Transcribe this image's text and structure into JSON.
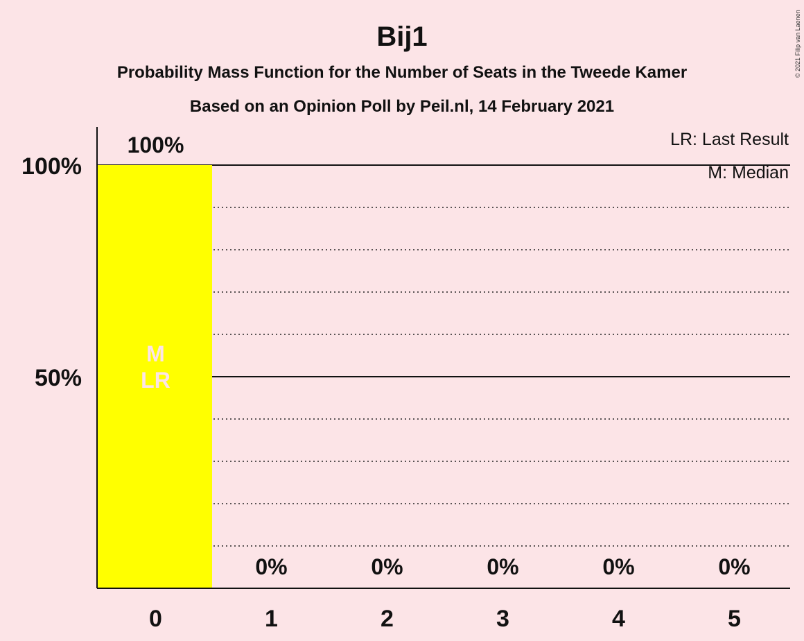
{
  "chart_data": {
    "type": "bar",
    "title": "Bij1",
    "subtitle_1": "Probability Mass Function for the Number of Seats in the Tweede Kamer",
    "subtitle_2": "Based on an Opinion Poll by Peil.nl, 14 February 2021",
    "categories": [
      "0",
      "1",
      "2",
      "3",
      "4",
      "5"
    ],
    "values": [
      100,
      0,
      0,
      0,
      0,
      0
    ],
    "value_labels": [
      "100%",
      "0%",
      "0%",
      "0%",
      "0%",
      "0%"
    ],
    "ylim": [
      0,
      100
    ],
    "yticks": [
      {
        "value": 50,
        "label": "50%"
      },
      {
        "value": 100,
        "label": "100%"
      }
    ],
    "grid_dotted_every": 10,
    "bar_color": "#ffff00",
    "median_seats": 0,
    "last_result_seats": 0,
    "median_marker": "M",
    "last_result_marker": "LR",
    "legend": {
      "last_result": "LR: Last Result",
      "median": "M: Median",
      "placement": "top-right"
    },
    "credit": "© 2021 Filip van Laenen"
  }
}
